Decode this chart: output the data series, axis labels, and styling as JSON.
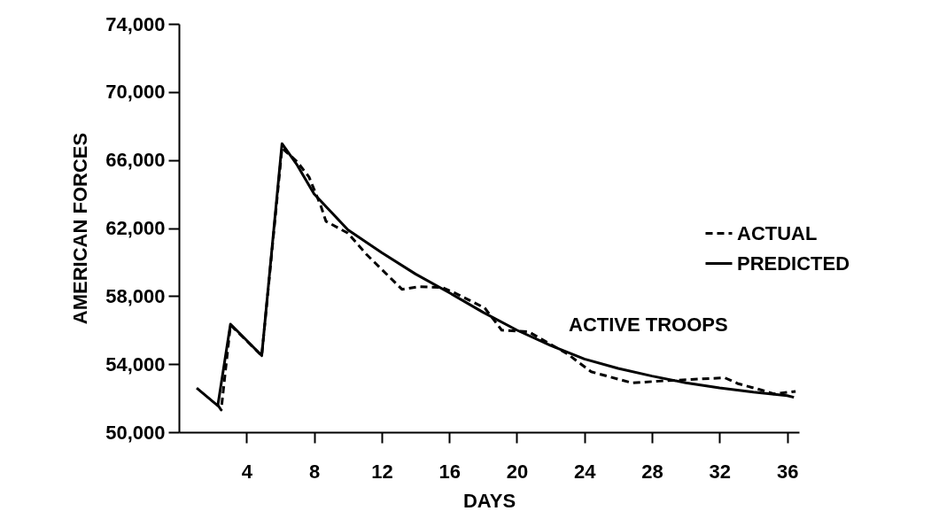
{
  "chart_data": {
    "type": "line",
    "xlabel": "DAYS",
    "ylabel": "AMERICAN FORCES",
    "xlim": [
      0,
      36.7
    ],
    "xticks": [
      4,
      8,
      12,
      16,
      20,
      24,
      28,
      32,
      36
    ],
    "ylim": [
      50000,
      74000
    ],
    "yticks": [
      {
        "value": 50000,
        "label": "50,000"
      },
      {
        "value": 54000,
        "label": "54,000"
      },
      {
        "value": 58000,
        "label": "58,000"
      },
      {
        "value": 62000,
        "label": "62,000"
      },
      {
        "value": 66000,
        "label": "66,000"
      },
      {
        "value": 70000,
        "label": "70,000"
      },
      {
        "value": 74000,
        "label": "74,000"
      }
    ],
    "grid": false,
    "legend": "right",
    "marker": "none",
    "annotations": [
      "ACTIVE TROOPS"
    ],
    "series": [
      {
        "name": "ACTUAL",
        "color": "#000000",
        "line_style": "dashed",
        "x": [
          2.3,
          2.5,
          3.05,
          4.9,
          6.1,
          7.0,
          7.7,
          8.4,
          8.7,
          10.0,
          11.1,
          13.2,
          14.2,
          15.6,
          16.3,
          18.1,
          19.1,
          20.7,
          23.0,
          24.4,
          26.8,
          28.4,
          30.3,
          32.3,
          33.1,
          34.4,
          35.2,
          36.5
        ],
        "values": [
          51600,
          51300,
          56300,
          54500,
          66700,
          65900,
          65000,
          63300,
          62400,
          61700,
          60450,
          58400,
          58550,
          58500,
          58200,
          57300,
          56000,
          55900,
          54600,
          53550,
          52900,
          53000,
          53100,
          53200,
          52850,
          52500,
          52250,
          52400
        ]
      },
      {
        "name": "PREDICTED",
        "color": "#000000",
        "line_style": "solid",
        "x": [
          1.05,
          2.3,
          3.05,
          4.9,
          6.1,
          7,
          8,
          10,
          12,
          14,
          16,
          18,
          20,
          22,
          24,
          26,
          28,
          30,
          32,
          34,
          36,
          36.4
        ],
        "values": [
          52600,
          51560,
          56350,
          54500,
          66960,
          65700,
          64000,
          61900,
          60550,
          59300,
          58200,
          57050,
          56000,
          55100,
          54300,
          53750,
          53300,
          52900,
          52600,
          52350,
          52150,
          52050
        ]
      }
    ]
  }
}
